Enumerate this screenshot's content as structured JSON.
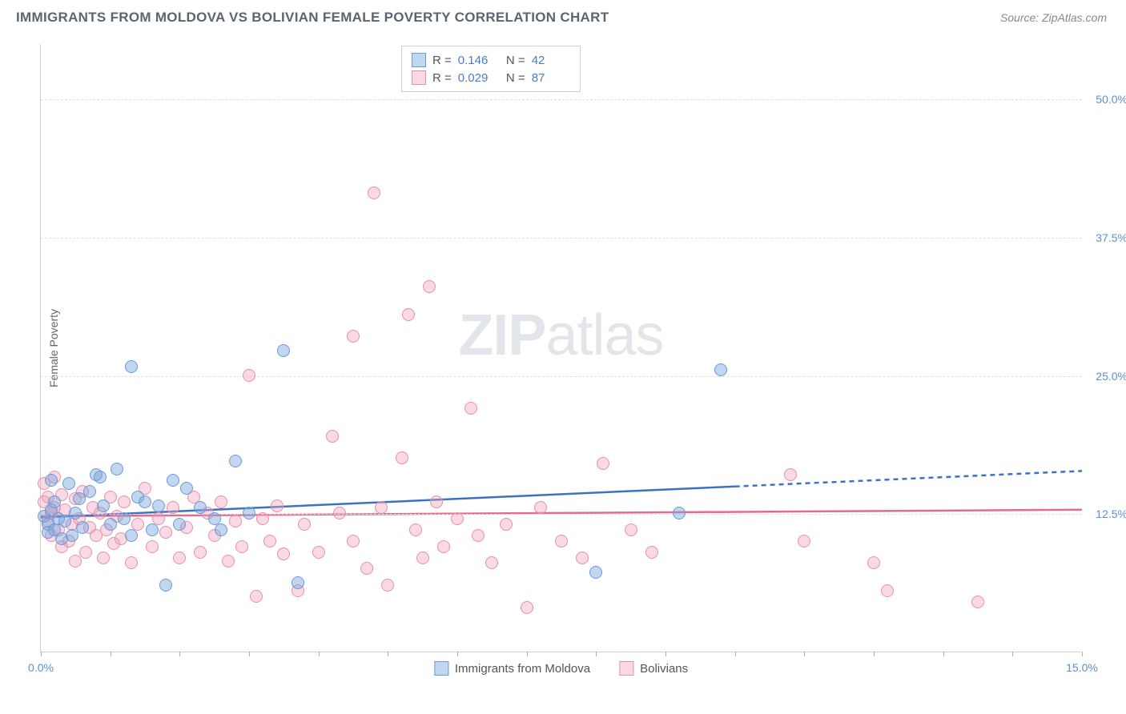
{
  "title": "IMMIGRANTS FROM MOLDOVA VS BOLIVIAN FEMALE POVERTY CORRELATION CHART",
  "source": "Source: ZipAtlas.com",
  "watermark": {
    "part1": "ZIP",
    "part2": "atlas"
  },
  "chart": {
    "type": "scatter",
    "ylabel": "Female Poverty",
    "xlim": [
      0,
      15
    ],
    "ylim": [
      0,
      55
    ],
    "yticks": [
      {
        "v": 12.5,
        "label": "12.5%"
      },
      {
        "v": 25.0,
        "label": "25.0%"
      },
      {
        "v": 37.5,
        "label": "37.5%"
      },
      {
        "v": 50.0,
        "label": "50.0%"
      }
    ],
    "xticks_minor": [
      0,
      1,
      2,
      3,
      4,
      5,
      6,
      7,
      8,
      9,
      10,
      11,
      12,
      13,
      14,
      15
    ],
    "xtick_labels": [
      {
        "v": 0,
        "label": "0.0%"
      },
      {
        "v": 15,
        "label": "15.0%"
      }
    ],
    "background_color": "#ffffff",
    "grid_color": "#e0e0e0",
    "series": {
      "moldova": {
        "label": "Immigrants from Moldova",
        "fill": "rgba(120,165,220,0.45)",
        "stroke": "#6a9bd8",
        "line_color": "#3b73c4",
        "R": "0.146",
        "N": "42",
        "marker_radius": 8,
        "trend": {
          "x1": 0,
          "y1": 12.2,
          "x2_solid": 10,
          "y2_solid": 15.0,
          "x2": 15,
          "y2": 16.4
        },
        "points": [
          [
            0.05,
            12.2
          ],
          [
            0.1,
            11.5
          ],
          [
            0.1,
            10.8
          ],
          [
            0.15,
            15.5
          ],
          [
            0.15,
            12.8
          ],
          [
            0.2,
            13.5
          ],
          [
            0.2,
            11.0
          ],
          [
            0.25,
            12.0
          ],
          [
            0.3,
            10.2
          ],
          [
            0.35,
            11.8
          ],
          [
            0.4,
            15.2
          ],
          [
            0.45,
            10.5
          ],
          [
            0.5,
            12.5
          ],
          [
            0.55,
            13.8
          ],
          [
            0.6,
            11.2
          ],
          [
            0.7,
            14.5
          ],
          [
            0.8,
            16.0
          ],
          [
            0.85,
            15.8
          ],
          [
            0.9,
            13.2
          ],
          [
            1.0,
            11.5
          ],
          [
            1.1,
            16.5
          ],
          [
            1.2,
            12.0
          ],
          [
            1.3,
            25.8
          ],
          [
            1.3,
            10.5
          ],
          [
            1.4,
            14.0
          ],
          [
            1.5,
            13.5
          ],
          [
            1.6,
            11.0
          ],
          [
            1.7,
            13.2
          ],
          [
            1.8,
            6.0
          ],
          [
            1.9,
            15.5
          ],
          [
            2.0,
            11.5
          ],
          [
            2.1,
            14.8
          ],
          [
            2.3,
            13.0
          ],
          [
            2.5,
            12.0
          ],
          [
            2.6,
            11.0
          ],
          [
            2.8,
            17.2
          ],
          [
            3.0,
            12.5
          ],
          [
            3.5,
            27.2
          ],
          [
            3.7,
            6.2
          ],
          [
            8.0,
            7.2
          ],
          [
            9.2,
            12.5
          ],
          [
            9.8,
            25.5
          ]
        ]
      },
      "bolivians": {
        "label": "Bolivians",
        "fill": "rgba(240,160,185,0.40)",
        "stroke": "#e88fa8",
        "line_color": "#e26b8f",
        "R": "0.029",
        "N": "87",
        "marker_radius": 8,
        "trend": {
          "x1": 0,
          "y1": 12.3,
          "x2_solid": 15,
          "y2_solid": 12.9,
          "x2": 15,
          "y2": 12.9
        },
        "points": [
          [
            0.05,
            15.2
          ],
          [
            0.05,
            13.5
          ],
          [
            0.1,
            14.0
          ],
          [
            0.1,
            11.8
          ],
          [
            0.15,
            12.5
          ],
          [
            0.15,
            10.5
          ],
          [
            0.2,
            13.0
          ],
          [
            0.2,
            15.8
          ],
          [
            0.25,
            11.0
          ],
          [
            0.3,
            14.2
          ],
          [
            0.3,
            9.5
          ],
          [
            0.35,
            12.8
          ],
          [
            0.4,
            10.0
          ],
          [
            0.45,
            11.5
          ],
          [
            0.5,
            13.8
          ],
          [
            0.5,
            8.2
          ],
          [
            0.55,
            12.0
          ],
          [
            0.6,
            14.5
          ],
          [
            0.65,
            9.0
          ],
          [
            0.7,
            11.2
          ],
          [
            0.75,
            13.0
          ],
          [
            0.8,
            10.5
          ],
          [
            0.85,
            12.5
          ],
          [
            0.9,
            8.5
          ],
          [
            0.95,
            11.0
          ],
          [
            1.0,
            14.0
          ],
          [
            1.05,
            9.8
          ],
          [
            1.1,
            12.2
          ],
          [
            1.15,
            10.2
          ],
          [
            1.2,
            13.5
          ],
          [
            1.3,
            8.0
          ],
          [
            1.4,
            11.5
          ],
          [
            1.5,
            14.8
          ],
          [
            1.6,
            9.5
          ],
          [
            1.7,
            12.0
          ],
          [
            1.8,
            10.8
          ],
          [
            1.9,
            13.0
          ],
          [
            2.0,
            8.5
          ],
          [
            2.1,
            11.2
          ],
          [
            2.2,
            14.0
          ],
          [
            2.3,
            9.0
          ],
          [
            2.4,
            12.5
          ],
          [
            2.5,
            10.5
          ],
          [
            2.6,
            13.5
          ],
          [
            2.7,
            8.2
          ],
          [
            2.8,
            11.8
          ],
          [
            2.9,
            9.5
          ],
          [
            3.0,
            25.0
          ],
          [
            3.1,
            5.0
          ],
          [
            3.2,
            12.0
          ],
          [
            3.3,
            10.0
          ],
          [
            3.4,
            13.2
          ],
          [
            3.5,
            8.8
          ],
          [
            3.7,
            5.5
          ],
          [
            3.8,
            11.5
          ],
          [
            4.0,
            9.0
          ],
          [
            4.2,
            19.5
          ],
          [
            4.3,
            12.5
          ],
          [
            4.5,
            28.5
          ],
          [
            4.5,
            10.0
          ],
          [
            4.7,
            7.5
          ],
          [
            4.8,
            41.5
          ],
          [
            4.9,
            13.0
          ],
          [
            5.0,
            6.0
          ],
          [
            5.2,
            17.5
          ],
          [
            5.3,
            30.5
          ],
          [
            5.4,
            11.0
          ],
          [
            5.5,
            8.5
          ],
          [
            5.6,
            33.0
          ],
          [
            5.7,
            13.5
          ],
          [
            5.8,
            9.5
          ],
          [
            6.0,
            12.0
          ],
          [
            6.2,
            22.0
          ],
          [
            6.3,
            10.5
          ],
          [
            6.5,
            8.0
          ],
          [
            6.7,
            11.5
          ],
          [
            7.0,
            4.0
          ],
          [
            7.2,
            13.0
          ],
          [
            7.5,
            10.0
          ],
          [
            7.8,
            8.5
          ],
          [
            8.1,
            17.0
          ],
          [
            8.5,
            11.0
          ],
          [
            8.8,
            9.0
          ],
          [
            10.8,
            16.0
          ],
          [
            11.0,
            10.0
          ],
          [
            12.0,
            8.0
          ],
          [
            12.2,
            5.5
          ],
          [
            13.5,
            4.5
          ]
        ]
      }
    }
  }
}
